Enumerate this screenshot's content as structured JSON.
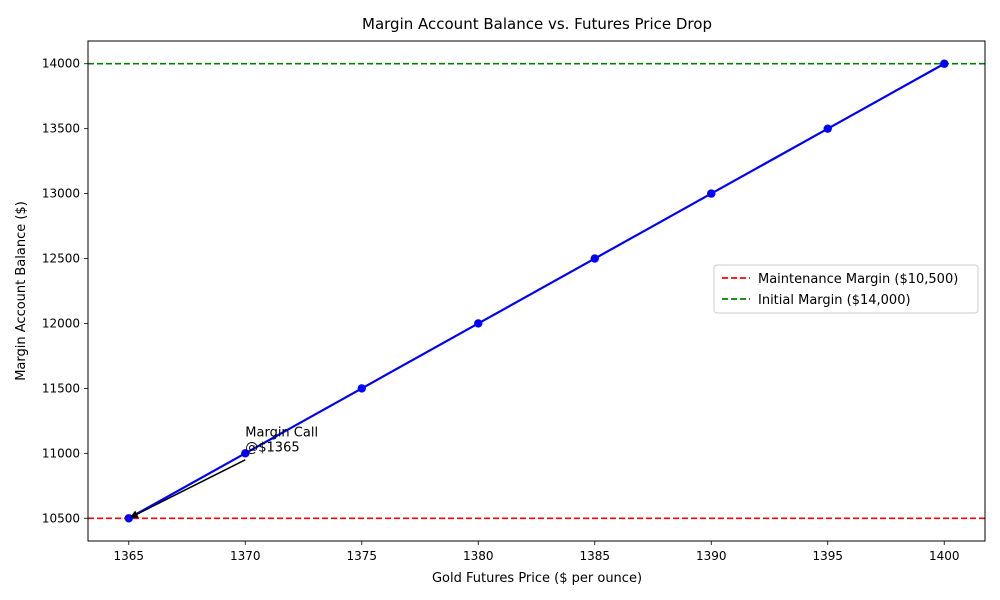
{
  "chart_data": {
    "type": "line",
    "title": "Margin Account Balance vs. Futures Price Drop",
    "xlabel": "Gold Futures Price ($ per ounce)",
    "ylabel": "Margin Account Balance ($)",
    "xlim": [
      1363.25,
      1401.75
    ],
    "ylim": [
      10325,
      14175
    ],
    "x_ticks": [
      1365,
      1370,
      1375,
      1380,
      1385,
      1390,
      1395,
      1400
    ],
    "y_ticks": [
      10500,
      11000,
      11500,
      12000,
      12500,
      13000,
      13500,
      14000
    ],
    "grid": false,
    "series": [
      {
        "x": [
          1400,
          1395,
          1390,
          1385,
          1380,
          1375,
          1370,
          1365
        ],
        "y": [
          14000,
          13500,
          13000,
          12500,
          12000,
          11500,
          11000,
          10500
        ],
        "color": "#0000ff",
        "marker": "circle"
      }
    ],
    "reference_lines": [
      {
        "name": "Maintenance Margin ($10,500)",
        "y": 10500,
        "color": "#ff0000",
        "style": "dashed"
      },
      {
        "name": "Initial Margin ($14,000)",
        "y": 14000,
        "color": "#008000",
        "style": "dashed"
      }
    ],
    "legend_position": "center-right",
    "annotation": {
      "text_lines": [
        "Margin Call",
        "@$1365"
      ],
      "point": {
        "x": 1365,
        "y": 10500
      },
      "text_anchor": {
        "x": 1370,
        "y": 10950
      }
    }
  }
}
